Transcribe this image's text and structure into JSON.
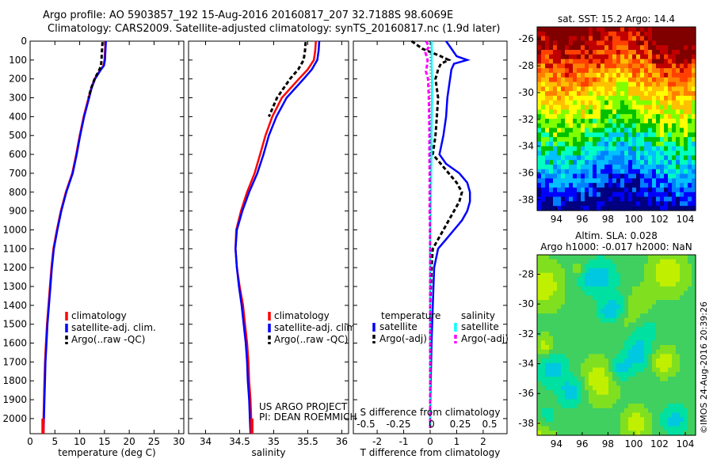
{
  "header": {
    "line1": "Argo profile: AO 5903857_192 15-Aug-2016 20160817_207 32.7188S 98.6069E",
    "line2": "Climatology: CARS2009. Satellite-adjusted climatology: synTS_20160817.nc (1.9d later)"
  },
  "side_stamp": "©IMOS 24-Aug-2016 20:39:26",
  "project_note": [
    "US ARGO PROJECT",
    "PI: DEAN ROEMMICH"
  ],
  "chart_data": [
    {
      "id": "temperature",
      "type": "line",
      "xlabel": "temperature (deg C)",
      "ylabel": "",
      "xlim": [
        0,
        31
      ],
      "ylim": [
        2080,
        0
      ],
      "xticks": [
        0,
        5,
        10,
        15,
        20,
        25,
        30
      ],
      "yticks": [
        0,
        100,
        200,
        300,
        400,
        500,
        600,
        700,
        800,
        900,
        1000,
        1100,
        1200,
        1300,
        1400,
        1500,
        1600,
        1700,
        1800,
        1900,
        2000
      ],
      "legend": [
        "climatology",
        "satellite-adj. clim.",
        "Argo(..raw -QC)"
      ],
      "series": [
        {
          "name": "climatology",
          "color": "#ff0000",
          "dash": "",
          "depth": [
            0,
            50,
            100,
            130,
            150,
            200,
            250,
            300,
            400,
            500,
            600,
            700,
            800,
            900,
            1000,
            1100,
            1200,
            1300,
            1400,
            1500,
            1600,
            1700,
            1800,
            1900,
            2000,
            2080
          ],
          "values": [
            15.2,
            15.1,
            15.0,
            14.8,
            14.2,
            13.0,
            12.3,
            11.8,
            10.8,
            10.0,
            9.3,
            8.5,
            7.2,
            6.2,
            5.4,
            4.7,
            4.3,
            4.0,
            3.7,
            3.4,
            3.2,
            3.0,
            2.9,
            2.8,
            2.7,
            2.6
          ]
        },
        {
          "name": "satellite-adj. clim.",
          "color": "#0000ff",
          "dash": "",
          "depth": [
            0,
            50,
            100,
            130,
            150,
            200,
            250,
            300,
            400,
            500,
            600,
            700,
            800,
            900,
            1000,
            1100,
            1200,
            1300,
            1400,
            1500,
            1600,
            1700,
            1800,
            1900,
            2000,
            2080
          ],
          "values": [
            15.3,
            15.2,
            15.1,
            14.9,
            14.3,
            13.1,
            12.4,
            11.9,
            10.9,
            10.1,
            9.4,
            8.6,
            7.3,
            6.3,
            5.5,
            4.8,
            4.4,
            4.1,
            3.8,
            3.5,
            3.3,
            3.1,
            3.0,
            2.9,
            2.8,
            2.7
          ]
        },
        {
          "name": "Argo(..raw -QC)",
          "color": "#000000",
          "dash": "5,3",
          "depth": [
            5,
            50,
            100,
            130,
            150,
            200,
            250,
            300
          ],
          "values": [
            14.6,
            14.5,
            14.4,
            14.3,
            14.0,
            13.0,
            12.3,
            11.8
          ]
        }
      ]
    },
    {
      "id": "salinity",
      "type": "line",
      "xlabel": "salinity",
      "ylabel": "",
      "xlim": [
        33.75,
        36.1
      ],
      "ylim": [
        2080,
        0
      ],
      "xticks": [
        34,
        34.5,
        35,
        35.5,
        36
      ],
      "legend": [
        "climatology",
        "satellite-adj. clim.",
        "Argo(..raw -QC)"
      ],
      "series": [
        {
          "name": "climatology",
          "color": "#ff0000",
          "dash": "",
          "depth": [
            0,
            50,
            100,
            150,
            200,
            300,
            400,
            500,
            600,
            700,
            800,
            900,
            1000,
            1100,
            1200,
            1300,
            1400,
            1500,
            1600,
            1700,
            1800,
            1900,
            2000,
            2080
          ],
          "values": [
            35.62,
            35.61,
            35.59,
            35.5,
            35.37,
            35.12,
            34.98,
            34.88,
            34.8,
            34.72,
            34.61,
            34.52,
            34.45,
            34.44,
            34.46,
            34.5,
            34.55,
            34.58,
            34.61,
            34.63,
            34.64,
            34.66,
            34.67,
            34.68
          ]
        },
        {
          "name": "satellite-adj. clim.",
          "color": "#0000ff",
          "dash": "",
          "depth": [
            0,
            50,
            100,
            150,
            200,
            300,
            400,
            500,
            600,
            700,
            800,
            900,
            1000,
            1100,
            1200,
            1300,
            1400,
            1500,
            1600,
            1700,
            1800,
            1900,
            2000,
            2080
          ],
          "values": [
            35.67,
            35.66,
            35.64,
            35.56,
            35.44,
            35.19,
            35.04,
            34.93,
            34.85,
            34.76,
            34.64,
            34.54,
            34.46,
            34.44,
            34.46,
            34.49,
            34.53,
            34.56,
            34.59,
            34.61,
            34.62,
            34.64,
            34.65,
            34.66
          ]
        },
        {
          "name": "Argo(..raw -QC)",
          "color": "#000000",
          "dash": "5,3",
          "depth": [
            5,
            50,
            100,
            150,
            200,
            300,
            400
          ],
          "values": [
            35.47,
            35.46,
            35.44,
            35.36,
            35.24,
            35.05,
            34.93
          ]
        }
      ]
    },
    {
      "id": "difference",
      "type": "line",
      "xlabel": "T difference from climatology",
      "top_label": "S difference from climatology",
      "xlim": [
        -2.9,
        2.9
      ],
      "ylim": [
        2080,
        0
      ],
      "xticks": [
        -2,
        -1,
        0,
        1,
        2
      ],
      "s_ticks": [
        "-0.5",
        "-0.25",
        "0",
        "0.25",
        "0.5"
      ],
      "legend_titles": [
        "temperature",
        "salinity"
      ],
      "legend": [
        "satellite",
        "Argo(-adj)",
        "satellite",
        "Argo(-adj)"
      ],
      "series": [
        {
          "name": "satellite",
          "group": "temperature",
          "color": "#0000ff",
          "dash": "",
          "depth": [
            0,
            40,
            80,
            100,
            120,
            150,
            200,
            300,
            400,
            500,
            600,
            650,
            700,
            750,
            800,
            850,
            900,
            950,
            1000,
            1050,
            1100,
            1200,
            1400,
            1600,
            1800,
            2000,
            2050
          ],
          "values": [
            0.6,
            0.8,
            1.0,
            1.4,
            0.9,
            0.8,
            0.75,
            0.65,
            0.6,
            0.5,
            0.35,
            0.6,
            1.1,
            1.4,
            1.5,
            1.5,
            1.4,
            1.2,
            0.9,
            0.6,
            0.3,
            0.15,
            0.1,
            0.05,
            0.02,
            0.0,
            0.0
          ]
        },
        {
          "name": "Argo(-adj)",
          "group": "temperature",
          "color": "#000000",
          "dash": "5,3",
          "depth": [
            0,
            40,
            80,
            100,
            120,
            150,
            200,
            300,
            400,
            500,
            600,
            650,
            700,
            750,
            800,
            850,
            900,
            950,
            1000,
            1050,
            1100,
            1200,
            1400,
            1600,
            1800,
            2000,
            2050
          ],
          "values": [
            -0.7,
            -0.3,
            0.4,
            0.7,
            0.4,
            0.3,
            0.2,
            0.3,
            0.25,
            0.2,
            0.1,
            0.4,
            0.7,
            1.0,
            1.2,
            1.1,
            0.9,
            0.7,
            0.5,
            0.3,
            0.1,
            0.05,
            0.0,
            0.0,
            0.0,
            0.0,
            0.0
          ]
        },
        {
          "name": "satellite",
          "group": "salinity",
          "color": "#00ffff",
          "dash": "",
          "depth": [
            0,
            50,
            100,
            150,
            200,
            300,
            400,
            500,
            600,
            700,
            800,
            900,
            1000,
            1100,
            1200,
            1400,
            1600,
            1800,
            2000,
            2050
          ],
          "values": [
            0.05,
            0.06,
            0.05,
            0.06,
            0.07,
            0.07,
            0.06,
            0.05,
            0.05,
            0.04,
            0.03,
            0.02,
            0.01,
            -0.01,
            0.0,
            0.0,
            0.0,
            0.0,
            0.0,
            0.0
          ]
        },
        {
          "name": "Argo(-adj)",
          "group": "salinity",
          "color": "#ff00ff",
          "dash": "5,3",
          "depth": [
            0,
            30,
            60,
            100,
            130,
            160,
            200,
            300,
            400,
            500,
            600,
            700,
            800,
            900,
            1000,
            1100,
            1200,
            1400,
            1600,
            1800,
            2000,
            2050
          ],
          "values": [
            -0.15,
            -0.05,
            -0.18,
            -0.1,
            -0.12,
            -0.16,
            -0.08,
            -0.05,
            -0.04,
            -0.03,
            -0.03,
            -0.02,
            -0.02,
            -0.02,
            -0.01,
            0.0,
            0.0,
            0.0,
            0.0,
            0.0,
            0.0,
            0.0
          ]
        }
      ]
    },
    {
      "id": "sst_map",
      "type": "heatmap",
      "title": "sat. SST: 15.2 Argo: 14.4",
      "xlim": [
        92.5,
        104.8
      ],
      "ylim": [
        -38.8,
        -25.1
      ],
      "xticks": [
        94,
        96,
        98,
        100,
        102,
        104
      ],
      "yticks": [
        -26,
        -28,
        -30,
        -32,
        -34,
        -36,
        -38
      ],
      "colormap": [
        "#000080",
        "#0000ff",
        "#0080ff",
        "#00c0ff",
        "#00ffc0",
        "#00c000",
        "#80ff00",
        "#ffff00",
        "#ffc000",
        "#ff8000",
        "#ff4000",
        "#c00000",
        "#800000"
      ]
    },
    {
      "id": "sla_map",
      "type": "heatmap",
      "title": "Altim. SLA: 0.028",
      "subtitle": "Argo h1000: -0.017 h2000: NaN",
      "xlim": [
        92.5,
        104.8
      ],
      "ylim": [
        -38.8,
        -26.7
      ],
      "xticks": [
        94,
        96,
        98,
        100,
        102,
        104
      ],
      "yticks": [
        -28,
        -30,
        -32,
        -34,
        -36,
        -38
      ],
      "colormap": [
        "#00c8e0",
        "#00e0a0",
        "#40d060",
        "#80e020",
        "#c0f000",
        "#ffff00"
      ]
    }
  ]
}
